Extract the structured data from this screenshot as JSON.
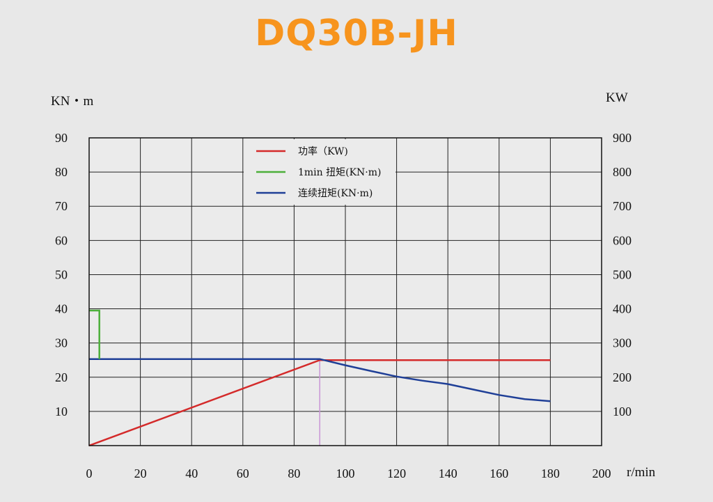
{
  "title": "DQ30B-JH",
  "units": {
    "left": "KN・m",
    "right": "KW",
    "x": "r/min"
  },
  "chart_data": {
    "type": "line",
    "title": "DQ30B-JH",
    "xlabel": "r/min",
    "ylabel": "KN・m",
    "ylabel_right": "KW",
    "xlim": [
      0,
      200
    ],
    "ylim": [
      0,
      90
    ],
    "ylim_right": [
      0,
      900
    ],
    "x_ticks": [
      0,
      20,
      40,
      60,
      80,
      100,
      120,
      140,
      160,
      180,
      200
    ],
    "y_ticks": [
      10,
      20,
      30,
      40,
      50,
      60,
      70,
      80,
      90
    ],
    "y_ticks_right": [
      100,
      200,
      300,
      400,
      500,
      600,
      700,
      800,
      900
    ],
    "grid": true,
    "legend_position": "top-center",
    "series": [
      {
        "name": "功率（KW)",
        "color": "#d42a2a",
        "axis": "right",
        "x": [
          0,
          90,
          180
        ],
        "y": [
          0,
          250,
          250
        ]
      },
      {
        "name": "1min 扭矩(KN·m)",
        "color": "#4caf3a",
        "axis": "left",
        "x": [
          0,
          4,
          4
        ],
        "y": [
          39.5,
          39.5,
          25.3
        ]
      },
      {
        "name": "连续扭矩(KN·m)",
        "color": "#1f3f97",
        "axis": "left",
        "x": [
          0,
          90,
          100,
          110,
          120,
          130,
          140,
          150,
          160,
          170,
          180
        ],
        "y": [
          25.3,
          25.3,
          23.5,
          21.8,
          20.2,
          19.0,
          18.0,
          16.4,
          14.8,
          13.6,
          13.0
        ]
      }
    ],
    "marker_line": {
      "x": 90,
      "color": "#c994d6"
    }
  }
}
